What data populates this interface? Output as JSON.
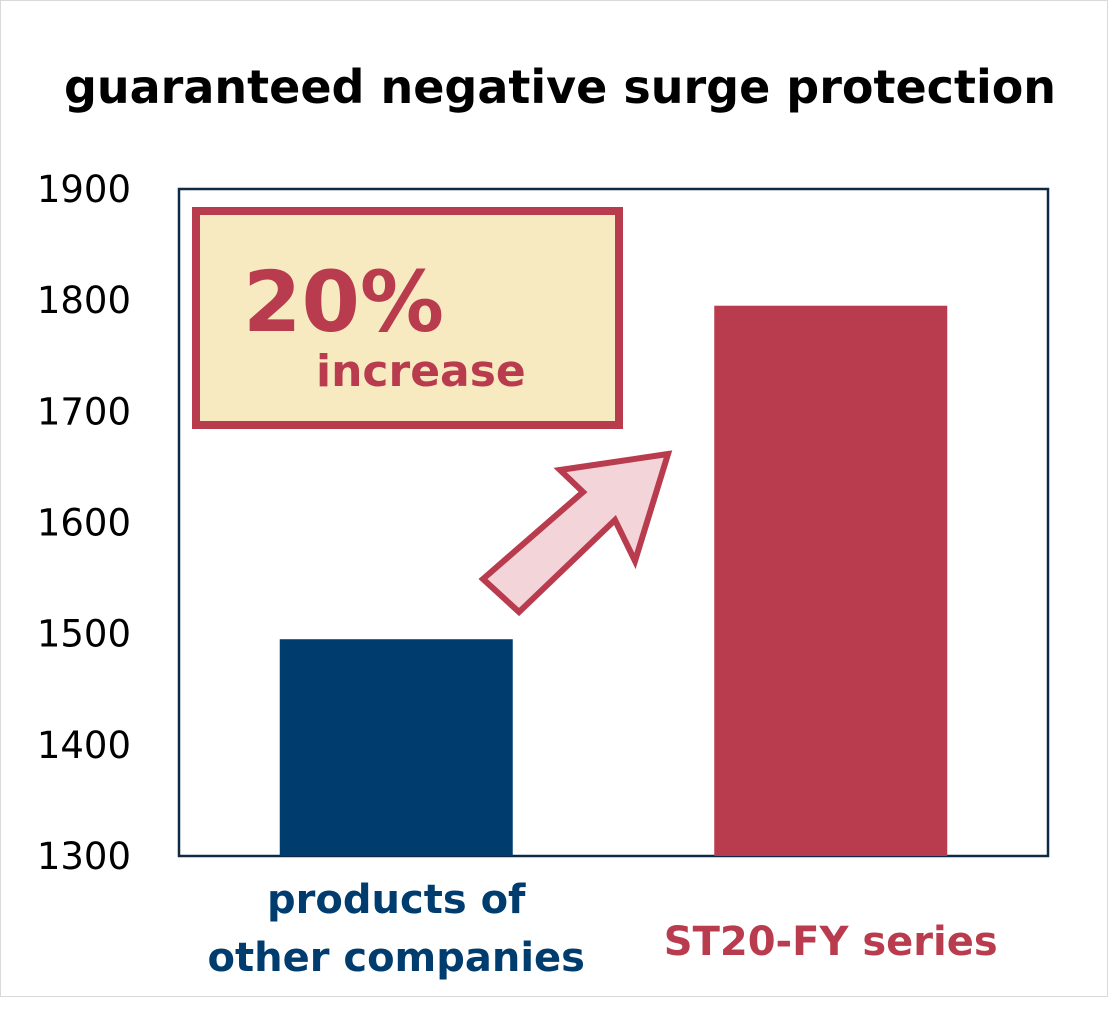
{
  "chart_data": {
    "type": "bar",
    "title": "guaranteed negative surge protection",
    "categories": [
      "products of\nother companies",
      "ST20-FY series"
    ],
    "category_lines": [
      [
        "products of",
        "other companies"
      ],
      [
        "ST20-FY series"
      ]
    ],
    "values": [
      1495,
      1795
    ],
    "bar_colors": [
      "#003d6e",
      "#b83b4e"
    ],
    "ylim": [
      1300,
      1900
    ],
    "yticks": [
      1300,
      1400,
      1500,
      1600,
      1700,
      1800,
      1900
    ],
    "ytick_labels": [
      "1300",
      "1400",
      "1500",
      "1600",
      "1700",
      "1800",
      "1900"
    ],
    "xlabel": "",
    "ylabel": "",
    "grid": false,
    "annotation": {
      "percent": "20%",
      "text": "increase",
      "box_fill": "#f8eac0",
      "border_color": "#b83b4e",
      "arrow_fill": "#f2d4d9"
    }
  }
}
